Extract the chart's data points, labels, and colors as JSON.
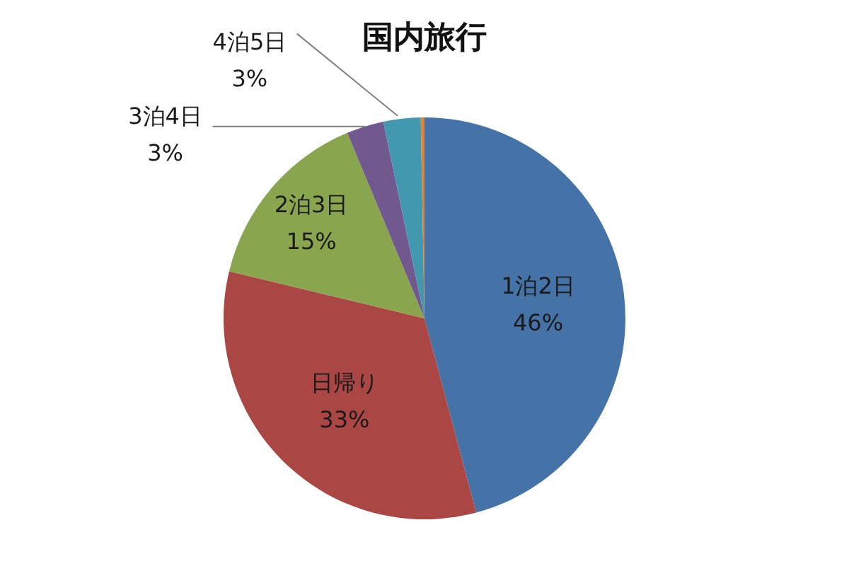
{
  "chart_data": {
    "type": "pie",
    "title": "国内旅行",
    "categories": [
      "1泊2日",
      "日帰り",
      "2泊3日",
      "3泊4日",
      "4泊5日",
      null
    ],
    "values": [
      46,
      33,
      15,
      3,
      3,
      0.3
    ],
    "colors": [
      "#4572a7",
      "#aa4643",
      "#89a54e",
      "#71588f",
      "#4198af",
      "#db843d"
    ],
    "value_labels": [
      "46%",
      "33%",
      "15%",
      "3%",
      "3%",
      null
    ]
  }
}
